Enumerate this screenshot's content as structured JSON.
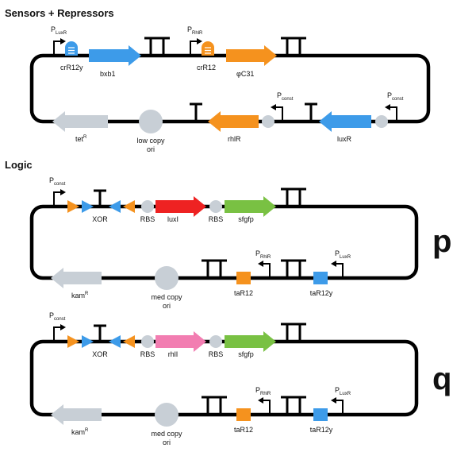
{
  "sections": {
    "sensors_title": "Sensors + Repressors",
    "logic_title": "Logic"
  },
  "sensors": {
    "p_luxr": "P",
    "p_luxr_sub": "LuxR",
    "p_rhlr": "P",
    "p_rhlr_sub": "RhlR",
    "crr12y": "crR12y",
    "bxb1": "bxb1",
    "crr12": "crR12",
    "phic31": "φC31",
    "tetr": "tet",
    "tetr_sup": "R",
    "low_copy_1": "low copy",
    "low_copy_2": "ori",
    "rhlr": "rhlR",
    "luxr": "luxR",
    "p_const_1": "P",
    "p_const_1_sub": "const",
    "p_const_2": "P",
    "p_const_2_sub": "const"
  },
  "logic_p": {
    "letter": "p",
    "p_const": "P",
    "p_const_sub": "const",
    "xor": "XOR",
    "rbs1": "RBS",
    "gene": "luxI",
    "rbs2": "RBS",
    "reporter": "sfgfp",
    "kamr": "kam",
    "kamr_sup": "R",
    "med_copy_1": "med copy",
    "med_copy_2": "ori",
    "tar12": "taR12",
    "tar12y": "taR12y",
    "p_rhlr": "P",
    "p_rhlr_sub": "RhlR",
    "p_luxr": "P",
    "p_luxr_sub": "LuxR"
  },
  "logic_q": {
    "letter": "q",
    "p_const": "P",
    "p_const_sub": "const",
    "xor": "XOR",
    "rbs1": "RBS",
    "gene": "rhlI",
    "rbs2": "RBS",
    "reporter": "sfgfp",
    "kamr": "kam",
    "kamr_sup": "R",
    "med_copy_1": "med copy",
    "med_copy_2": "ori",
    "tar12": "taR12",
    "tar12y": "taR12y",
    "p_rhlr": "P",
    "p_rhlr_sub": "RhlR",
    "p_luxr": "P",
    "p_luxr_sub": "LuxR"
  },
  "colors": {
    "blue": "#3d9be9",
    "orange": "#f5921e",
    "red": "#ee2222",
    "pink": "#f27db1",
    "green": "#79c143",
    "gray": "#c8cfd6",
    "backbone": "#000000"
  }
}
